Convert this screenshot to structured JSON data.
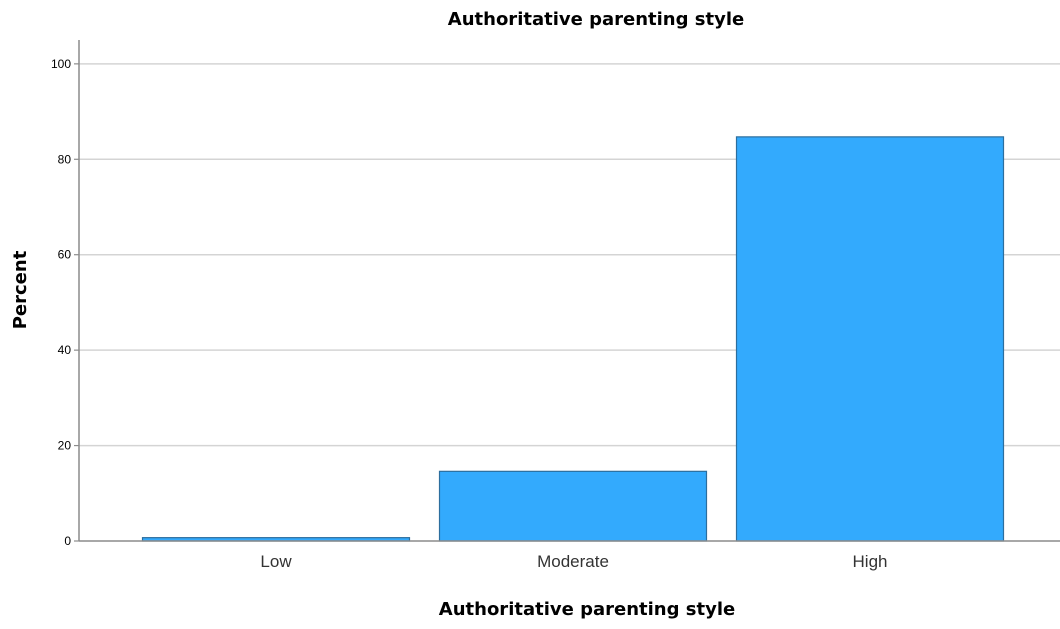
{
  "chart_data": {
    "type": "bar",
    "title": "Authoritative parenting style",
    "xlabel": "Authoritative parenting style",
    "ylabel": "Percent",
    "categories": [
      "Low",
      "Moderate",
      "High"
    ],
    "values": [
      0.7,
      14.6,
      84.7
    ],
    "ylim": [
      0,
      105
    ],
    "yticks": [
      0,
      20,
      40,
      60,
      80,
      100
    ],
    "grid": true,
    "legend": "none",
    "colors": {
      "bar_fill": "#33aafd",
      "bar_stroke": "#2c6e9e"
    }
  }
}
